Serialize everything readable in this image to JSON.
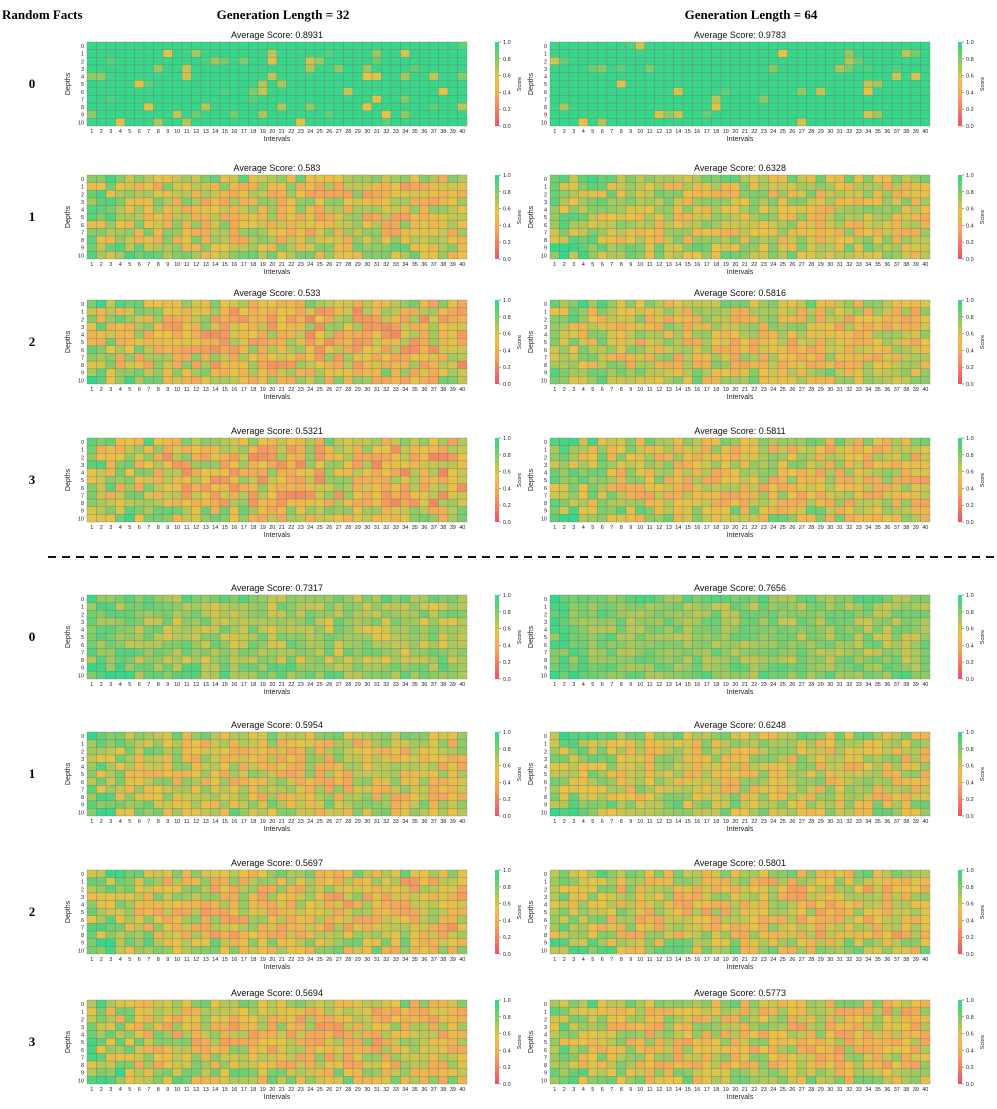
{
  "header": {
    "corner_label": "Random Facts",
    "col_labels": [
      "Generation Length = 32",
      "Generation Length = 64"
    ]
  },
  "row_labels": [
    "0",
    "1",
    "2",
    "3",
    "0",
    "1",
    "2",
    "3"
  ],
  "axes": {
    "x_label": "Intervals",
    "y_label": "Depths",
    "colorbar_label": "Score",
    "x_ticks": [
      "1",
      "2",
      "3",
      "4",
      "5",
      "6",
      "7",
      "8",
      "9",
      "10",
      "11",
      "12",
      "13",
      "14",
      "15",
      "16",
      "17",
      "18",
      "19",
      "20",
      "21",
      "22",
      "23",
      "24",
      "25",
      "26",
      "27",
      "28",
      "29",
      "30",
      "31",
      "32",
      "33",
      "34",
      "35",
      "36",
      "37",
      "38",
      "39",
      "40"
    ],
    "y_ticks": [
      "0",
      "1",
      "2",
      "3",
      "4",
      "5",
      "6",
      "7",
      "8",
      "9",
      "10"
    ],
    "colorbar_ticks": [
      "0.0",
      "0.2",
      "0.4",
      "0.6",
      "0.8",
      "1.0"
    ]
  },
  "colors": {
    "low": "#f0506e",
    "mid_low": "#f5a45a",
    "mid": "#e9c344",
    "mid_high": "#86cc67",
    "high": "#2fd88c",
    "grid_line": "#7a7a7a",
    "divider": "#111111"
  },
  "chart_data": [
    {
      "type": "heatmap",
      "group": "top",
      "row_label": "0",
      "generation_length": 32,
      "title": "Average Score: 0.8931",
      "avg": 0.8931,
      "vmin": 0.0,
      "vmax": 1.0,
      "xlabel": "Intervals",
      "ylabel": "Depths"
    },
    {
      "type": "heatmap",
      "group": "top",
      "row_label": "0",
      "generation_length": 64,
      "title": "Average Score: 0.9783",
      "avg": 0.9783,
      "vmin": 0.0,
      "vmax": 1.0,
      "xlabel": "Intervals",
      "ylabel": "Depths"
    },
    {
      "type": "heatmap",
      "group": "top",
      "row_label": "1",
      "generation_length": 32,
      "title": "Average Score: 0.583",
      "avg": 0.583,
      "vmin": 0.0,
      "vmax": 1.0,
      "xlabel": "Intervals",
      "ylabel": "Depths"
    },
    {
      "type": "heatmap",
      "group": "top",
      "row_label": "1",
      "generation_length": 64,
      "title": "Average Score: 0.6328",
      "avg": 0.6328,
      "vmin": 0.0,
      "vmax": 1.0,
      "xlabel": "Intervals",
      "ylabel": "Depths"
    },
    {
      "type": "heatmap",
      "group": "top",
      "row_label": "2",
      "generation_length": 32,
      "title": "Average Score: 0.533",
      "avg": 0.533,
      "vmin": 0.0,
      "vmax": 1.0,
      "xlabel": "Intervals",
      "ylabel": "Depths"
    },
    {
      "type": "heatmap",
      "group": "top",
      "row_label": "2",
      "generation_length": 64,
      "title": "Average Score: 0.5816",
      "avg": 0.5816,
      "vmin": 0.0,
      "vmax": 1.0,
      "xlabel": "Intervals",
      "ylabel": "Depths"
    },
    {
      "type": "heatmap",
      "group": "top",
      "row_label": "3",
      "generation_length": 32,
      "title": "Average Score: 0.5321",
      "avg": 0.5321,
      "vmin": 0.0,
      "vmax": 1.0,
      "xlabel": "Intervals",
      "ylabel": "Depths"
    },
    {
      "type": "heatmap",
      "group": "top",
      "row_label": "3",
      "generation_length": 64,
      "title": "Average Score: 0.5811",
      "avg": 0.5811,
      "vmin": 0.0,
      "vmax": 1.0,
      "xlabel": "Intervals",
      "ylabel": "Depths"
    },
    {
      "type": "heatmap",
      "group": "bottom",
      "row_label": "0",
      "generation_length": 32,
      "title": "Average Score: 0.7317",
      "avg": 0.7317,
      "vmin": 0.0,
      "vmax": 1.0,
      "xlabel": "Intervals",
      "ylabel": "Depths"
    },
    {
      "type": "heatmap",
      "group": "bottom",
      "row_label": "0",
      "generation_length": 64,
      "title": "Average Score: 0.7656",
      "avg": 0.7656,
      "vmin": 0.0,
      "vmax": 1.0,
      "xlabel": "Intervals",
      "ylabel": "Depths"
    },
    {
      "type": "heatmap",
      "group": "bottom",
      "row_label": "1",
      "generation_length": 32,
      "title": "Average Score: 0.5954",
      "avg": 0.5954,
      "vmin": 0.0,
      "vmax": 1.0,
      "xlabel": "Intervals",
      "ylabel": "Depths"
    },
    {
      "type": "heatmap",
      "group": "bottom",
      "row_label": "1",
      "generation_length": 64,
      "title": "Average Score: 0.6248",
      "avg": 0.6248,
      "vmin": 0.0,
      "vmax": 1.0,
      "xlabel": "Intervals",
      "ylabel": "Depths"
    },
    {
      "type": "heatmap",
      "group": "bottom",
      "row_label": "2",
      "generation_length": 32,
      "title": "Average Score: 0.5697",
      "avg": 0.5697,
      "vmin": 0.0,
      "vmax": 1.0,
      "xlabel": "Intervals",
      "ylabel": "Depths"
    },
    {
      "type": "heatmap",
      "group": "bottom",
      "row_label": "2",
      "generation_length": 64,
      "title": "Average Score: 0.5801",
      "avg": 0.5801,
      "vmin": 0.0,
      "vmax": 1.0,
      "xlabel": "Intervals",
      "ylabel": "Depths"
    },
    {
      "type": "heatmap",
      "group": "bottom",
      "row_label": "3",
      "generation_length": 32,
      "title": "Average Score: 0.5694",
      "avg": 0.5694,
      "vmin": 0.0,
      "vmax": 1.0,
      "xlabel": "Intervals",
      "ylabel": "Depths"
    },
    {
      "type": "heatmap",
      "group": "bottom",
      "row_label": "3",
      "generation_length": 64,
      "title": "Average Score: 0.5773",
      "avg": 0.5773,
      "vmin": 0.0,
      "vmax": 1.0,
      "xlabel": "Intervals",
      "ylabel": "Depths"
    }
  ]
}
